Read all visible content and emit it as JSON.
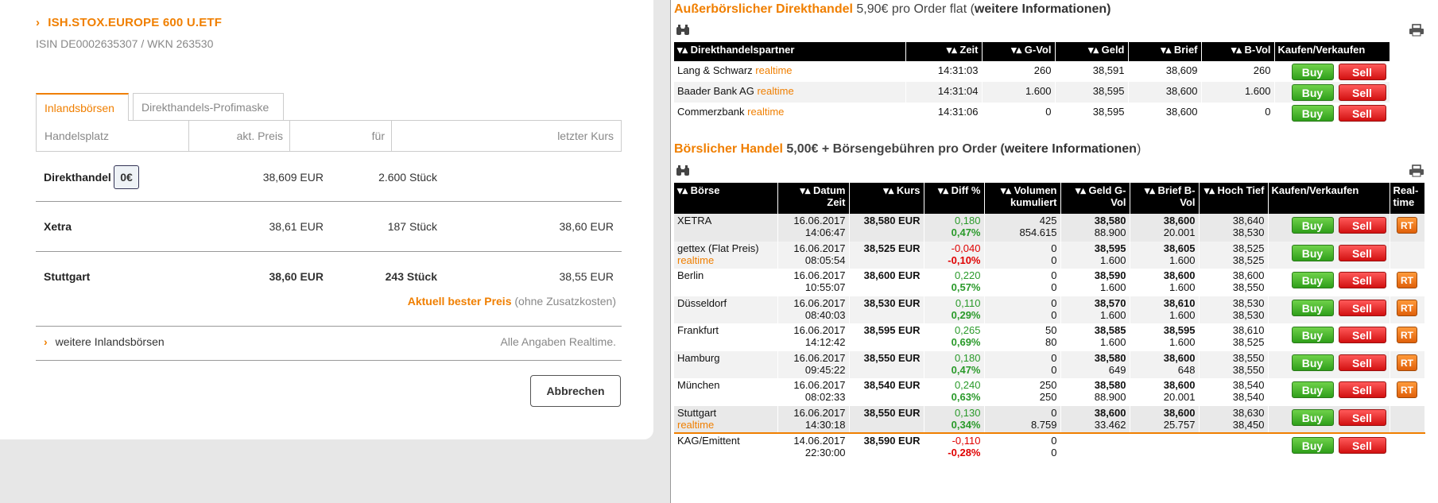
{
  "left": {
    "title": "ISH.STOX.EUROPE 600 U.ETF",
    "isin_line": "ISIN DE0002635307 / WKN 263530",
    "tabs": [
      "Inlandsbörsen",
      "Direkthandels-Profimaske"
    ],
    "headers": [
      "Handelsplatz",
      "akt. Preis",
      "für",
      "letzter Kurs"
    ],
    "rows": [
      {
        "venue": "Direkthandel",
        "badge": "0€",
        "price": "38,609 EUR",
        "qty": "2.600 Stück",
        "last": ""
      },
      {
        "venue": "Xetra",
        "price": "38,61 EUR",
        "qty": "187 Stück",
        "last": "38,60 EUR"
      },
      {
        "venue": "Stuttgart",
        "price": "38,60 EUR",
        "qty": "243 Stück",
        "last": "38,55 EUR"
      }
    ],
    "best_label": "Aktuell bester Preis",
    "best_note": "(ohne Zusatzkosten)",
    "more_inland": "weitere Inlandsbörsen",
    "realtime_note": "Alle Angaben Realtime.",
    "cancel": "Abbrechen",
    "accent_color": "#f07f00"
  },
  "direct": {
    "title": "Außerbörslicher Direkthandel",
    "fee": "5,90€ pro Order flat (",
    "more": "weitere Informationen",
    "close": ")",
    "headers": [
      "▾▴ Direkthandelspartner",
      "▾▴ Zeit",
      "▾▴ G-Vol",
      "▾▴ Geld",
      "▾▴ Brief",
      "▾▴ B-Vol",
      "Kaufen/Verkaufen"
    ],
    "rows": [
      {
        "partner": "Lang & Schwarz",
        "tag": "realtime",
        "time": "14:31:03",
        "gvol": "260",
        "bid": "38,591",
        "ask": "38,609",
        "bvol": "260"
      },
      {
        "partner": "Baader Bank AG",
        "tag": "realtime",
        "time": "14:31:04",
        "gvol": "1.600",
        "bid": "38,595",
        "ask": "38,600",
        "bvol": "1.600"
      },
      {
        "partner": "Commerzbank",
        "tag": "realtime",
        "time": "14:31:06",
        "gvol": "0",
        "bid": "38,595",
        "ask": "38,600",
        "bvol": "0"
      }
    ]
  },
  "exchange": {
    "title": "Börslicher Handel",
    "fee_a": "5,00€ + Börsengebühren pro Order (",
    "more": "weitere Informationen",
    "close": ")",
    "headers": [
      "▾▴ Börse",
      "▾▴ Datum Zeit",
      "▾▴ Kurs",
      "▾▴ Diff %",
      "▾▴ Volumen kumuliert",
      "▾▴ Geld G-Vol",
      "▾▴ Brief B-Vol",
      "▾▴ Hoch Tief",
      "Kaufen/Verkaufen",
      "Real-time"
    ],
    "rows": [
      {
        "venue": "XETRA",
        "tag": "",
        "date": "16.06.2017",
        "time": "14:06:47",
        "kurs": "38,580 EUR",
        "diff": "0,180",
        "pct": "0,47%",
        "sign": "pos",
        "vol": "425",
        "cum": "854.615",
        "bid": "38,580",
        "gvol": "88.900",
        "ask": "38,600",
        "bvol": "20.001",
        "hi": "38,640",
        "lo": "38,530",
        "rt": "RT"
      },
      {
        "venue": "gettex (Flat Preis)",
        "tag": "realtime",
        "date": "16.06.2017",
        "time": "08:05:54",
        "kurs": "38,525 EUR",
        "diff": "-0,040",
        "pct": "-0,10%",
        "sign": "neg",
        "vol": "0",
        "cum": "0",
        "bid": "38,595",
        "gvol": "1.600",
        "ask": "38,605",
        "bvol": "1.600",
        "hi": "38,525",
        "lo": "38,525",
        "rt": ""
      },
      {
        "venue": "Berlin",
        "tag": "",
        "date": "16.06.2017",
        "time": "10:55:07",
        "kurs": "38,600 EUR",
        "diff": "0,220",
        "pct": "0,57%",
        "sign": "pos",
        "vol": "0",
        "cum": "0",
        "bid": "38,590",
        "gvol": "1.600",
        "ask": "38,600",
        "bvol": "1.600",
        "hi": "38,600",
        "lo": "38,550",
        "rt": "RT"
      },
      {
        "venue": "Düsseldorf",
        "tag": "",
        "date": "16.06.2017",
        "time": "08:40:03",
        "kurs": "38,530 EUR",
        "diff": "0,110",
        "pct": "0,29%",
        "sign": "pos",
        "vol": "0",
        "cum": "0",
        "bid": "38,570",
        "gvol": "1.600",
        "ask": "38,610",
        "bvol": "1.600",
        "hi": "38,530",
        "lo": "38,530",
        "rt": "RT"
      },
      {
        "venue": "Frankfurt",
        "tag": "",
        "date": "16.06.2017",
        "time": "14:12:42",
        "kurs": "38,595 EUR",
        "diff": "0,265",
        "pct": "0,69%",
        "sign": "pos",
        "vol": "50",
        "cum": "80",
        "bid": "38,585",
        "gvol": "1.600",
        "ask": "38,595",
        "bvol": "1.600",
        "hi": "38,610",
        "lo": "38,525",
        "rt": "RT"
      },
      {
        "venue": "Hamburg",
        "tag": "",
        "date": "16.06.2017",
        "time": "09:45:22",
        "kurs": "38,550 EUR",
        "diff": "0,180",
        "pct": "0,47%",
        "sign": "pos",
        "vol": "0",
        "cum": "0",
        "bid": "38,580",
        "gvol": "649",
        "ask": "38,600",
        "bvol": "648",
        "hi": "38,550",
        "lo": "38,550",
        "rt": "RT"
      },
      {
        "venue": "München",
        "tag": "",
        "date": "16.06.2017",
        "time": "08:02:33",
        "kurs": "38,540 EUR",
        "diff": "0,240",
        "pct": "0,63%",
        "sign": "pos",
        "vol": "250",
        "cum": "250",
        "bid": "38,580",
        "gvol": "88.900",
        "ask": "38,600",
        "bvol": "20.001",
        "hi": "38,540",
        "lo": "38,540",
        "rt": "RT"
      },
      {
        "venue": "Stuttgart",
        "tag": "realtime",
        "date": "16.06.2017",
        "time": "14:30:18",
        "kurs": "38,550 EUR",
        "diff": "0,130",
        "pct": "0,34%",
        "sign": "pos",
        "vol": "0",
        "cum": "8.759",
        "bid": "38,600",
        "gvol": "33.462",
        "ask": "38,600",
        "bvol": "25.757",
        "hi": "38,630",
        "lo": "38,450",
        "rt": ""
      },
      {
        "venue": "KAG/Emittent",
        "tag": "",
        "date": "14.06.2017",
        "time": "22:30:00",
        "kurs": "38,590 EUR",
        "diff": "-0,110",
        "pct": "-0,28%",
        "sign": "neg",
        "vol": "0",
        "cum": "0",
        "bid": "",
        "gvol": "",
        "ask": "",
        "bvol": "",
        "hi": "",
        "lo": "",
        "rt": ""
      }
    ]
  },
  "buttons": {
    "buy": "Buy",
    "sell": "Sell"
  },
  "icons": {
    "binoculars": "binoculars-icon",
    "printer": "printer-icon"
  },
  "colors": {
    "buy": "#3bb31f",
    "sell": "#e01818",
    "realtime_tag": "#f07f00",
    "positive": "#2a9a2a",
    "negative": "#e00000"
  }
}
